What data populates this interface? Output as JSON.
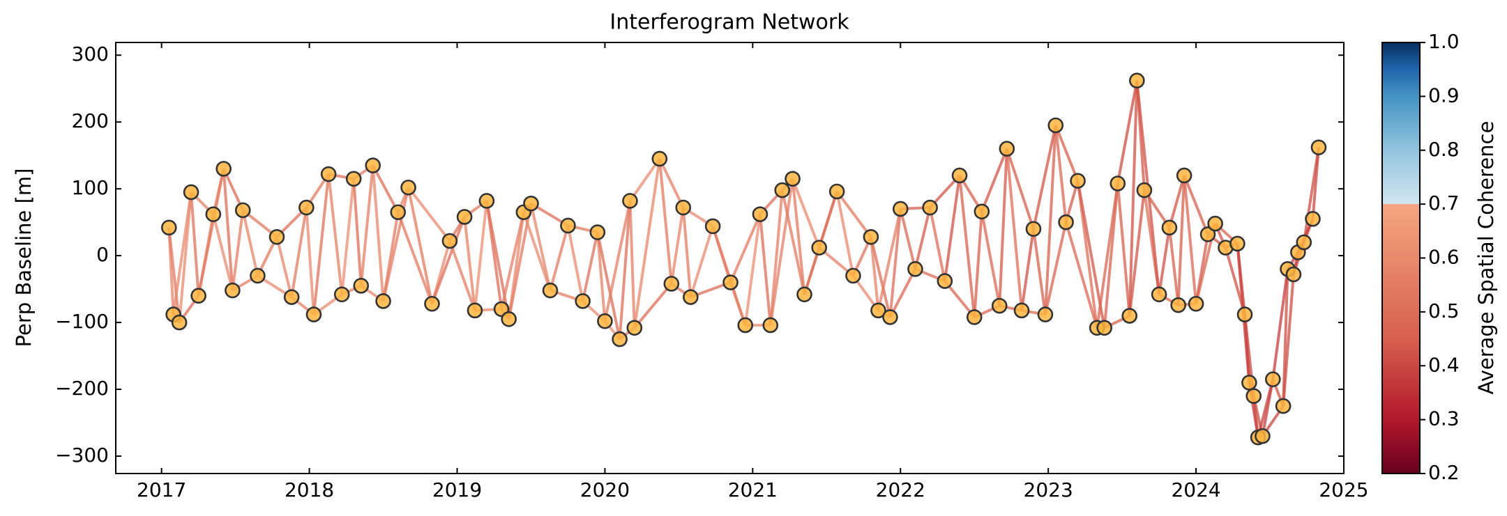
{
  "chart_data": {
    "type": "network",
    "title": "Interferogram Network",
    "ylabel": "Perp Baseline [m]",
    "x": [
      2017.05,
      2017.08,
      2017.12,
      2017.2,
      2017.25,
      2017.35,
      2017.42,
      2017.48,
      2017.55,
      2017.65,
      2017.78,
      2017.88,
      2017.98,
      2018.03,
      2018.13,
      2018.22,
      2018.3,
      2018.35,
      2018.43,
      2018.5,
      2018.6,
      2018.67,
      2018.83,
      2018.95,
      2019.05,
      2019.12,
      2019.2,
      2019.3,
      2019.35,
      2019.45,
      2019.5,
      2019.63,
      2019.75,
      2019.85,
      2019.95,
      2020.0,
      2020.1,
      2020.17,
      2020.2,
      2020.37,
      2020.45,
      2020.53,
      2020.58,
      2020.73,
      2020.85,
      2020.95,
      2021.05,
      2021.12,
      2021.2,
      2021.27,
      2021.35,
      2021.45,
      2021.57,
      2021.68,
      2021.8,
      2021.85,
      2021.93,
      2022.0,
      2022.1,
      2022.2,
      2022.3,
      2022.4,
      2022.5,
      2022.55,
      2022.67,
      2022.72,
      2022.82,
      2022.9,
      2022.98,
      2023.05,
      2023.12,
      2023.2,
      2023.33,
      2023.38,
      2023.47,
      2023.55,
      2023.6,
      2023.65,
      2023.75,
      2023.82,
      2023.88,
      2023.92,
      2024.0,
      2024.08,
      2024.13,
      2024.2,
      2024.28,
      2024.33,
      2024.36,
      2024.39,
      2024.42,
      2024.45,
      2024.52,
      2024.59,
      2024.62,
      2024.66,
      2024.69,
      2024.73,
      2024.79,
      2024.83
    ],
    "values": [
      42,
      -88,
      -100,
      95,
      -60,
      62,
      130,
      -52,
      68,
      -30,
      28,
      -62,
      72,
      -88,
      122,
      -58,
      115,
      -45,
      135,
      -68,
      65,
      102,
      -72,
      22,
      58,
      -82,
      82,
      -80,
      -95,
      65,
      78,
      -52,
      45,
      -68,
      35,
      -98,
      -125,
      82,
      -108,
      145,
      -42,
      72,
      -62,
      44,
      -40,
      -104,
      62,
      -104,
      98,
      115,
      -58,
      12,
      96,
      -30,
      28,
      -82,
      -92,
      70,
      -20,
      72,
      -38,
      120,
      -92,
      66,
      -75,
      160,
      -82,
      40,
      -88,
      195,
      50,
      112,
      -108,
      -108,
      108,
      -90,
      262,
      98,
      -58,
      42,
      -74,
      120,
      -72,
      32,
      48,
      12,
      18,
      -88,
      -190,
      -210,
      -272,
      -270,
      -185,
      -225,
      -20,
      -28,
      5,
      20,
      55,
      162
    ],
    "edges": [
      [
        0,
        1,
        0.58
      ],
      [
        1,
        2,
        0.55
      ],
      [
        2,
        3,
        0.6
      ],
      [
        3,
        4,
        0.52
      ],
      [
        4,
        5,
        0.57
      ],
      [
        5,
        6,
        0.62
      ],
      [
        6,
        7,
        0.5
      ],
      [
        7,
        8,
        0.56
      ],
      [
        8,
        9,
        0.59
      ],
      [
        9,
        10,
        0.54
      ],
      [
        10,
        11,
        0.58
      ],
      [
        11,
        12,
        0.55
      ],
      [
        12,
        13,
        0.6
      ],
      [
        13,
        14,
        0.52
      ],
      [
        14,
        15,
        0.57
      ],
      [
        15,
        16,
        0.62
      ],
      [
        16,
        17,
        0.5
      ],
      [
        17,
        18,
        0.56
      ],
      [
        18,
        19,
        0.59
      ],
      [
        19,
        20,
        0.54
      ],
      [
        20,
        21,
        0.58
      ],
      [
        21,
        22,
        0.55
      ],
      [
        22,
        23,
        0.6
      ],
      [
        23,
        24,
        0.52
      ],
      [
        24,
        25,
        0.57
      ],
      [
        25,
        26,
        0.62
      ],
      [
        26,
        27,
        0.5
      ],
      [
        27,
        28,
        0.56
      ],
      [
        28,
        29,
        0.59
      ],
      [
        29,
        30,
        0.54
      ],
      [
        30,
        31,
        0.58
      ],
      [
        31,
        32,
        0.55
      ],
      [
        32,
        33,
        0.6
      ],
      [
        33,
        34,
        0.52
      ],
      [
        34,
        35,
        0.57
      ],
      [
        35,
        36,
        0.62
      ],
      [
        36,
        37,
        0.5
      ],
      [
        37,
        38,
        0.56
      ],
      [
        38,
        39,
        0.59
      ],
      [
        39,
        40,
        0.54
      ],
      [
        40,
        41,
        0.58
      ],
      [
        41,
        42,
        0.55
      ],
      [
        42,
        43,
        0.6
      ],
      [
        43,
        44,
        0.52
      ],
      [
        44,
        45,
        0.57
      ],
      [
        45,
        46,
        0.62
      ],
      [
        46,
        47,
        0.5
      ],
      [
        47,
        48,
        0.56
      ],
      [
        48,
        49,
        0.59
      ],
      [
        49,
        50,
        0.54
      ],
      [
        50,
        51,
        0.58
      ],
      [
        51,
        52,
        0.55
      ],
      [
        52,
        53,
        0.6
      ],
      [
        53,
        54,
        0.52
      ],
      [
        54,
        55,
        0.57
      ],
      [
        55,
        56,
        0.62
      ],
      [
        56,
        57,
        0.5
      ],
      [
        57,
        58,
        0.48
      ],
      [
        58,
        59,
        0.44
      ],
      [
        59,
        60,
        0.5
      ],
      [
        60,
        61,
        0.42
      ],
      [
        61,
        62,
        0.46
      ],
      [
        62,
        63,
        0.45
      ],
      [
        63,
        64,
        0.48
      ],
      [
        64,
        65,
        0.44
      ],
      [
        65,
        66,
        0.5
      ],
      [
        66,
        67,
        0.42
      ],
      [
        67,
        68,
        0.46
      ],
      [
        68,
        69,
        0.45
      ],
      [
        69,
        70,
        0.48
      ],
      [
        70,
        71,
        0.44
      ],
      [
        71,
        72,
        0.5
      ],
      [
        72,
        73,
        0.42
      ],
      [
        73,
        74,
        0.46
      ],
      [
        74,
        75,
        0.45
      ],
      [
        75,
        76,
        0.42
      ],
      [
        76,
        77,
        0.44
      ],
      [
        77,
        78,
        0.5
      ],
      [
        78,
        79,
        0.42
      ],
      [
        79,
        80,
        0.46
      ],
      [
        80,
        81,
        0.45
      ],
      [
        81,
        82,
        0.48
      ],
      [
        82,
        83,
        0.44
      ],
      [
        83,
        84,
        0.5
      ],
      [
        84,
        85,
        0.42
      ],
      [
        85,
        86,
        0.46
      ],
      [
        86,
        87,
        0.4
      ],
      [
        87,
        88,
        0.38
      ],
      [
        88,
        89,
        0.42
      ],
      [
        89,
        90,
        0.41
      ],
      [
        90,
        91,
        0.4
      ],
      [
        91,
        92,
        0.38
      ],
      [
        92,
        93,
        0.42
      ],
      [
        93,
        94,
        0.41
      ],
      [
        94,
        95,
        0.4
      ],
      [
        95,
        96,
        0.38
      ],
      [
        96,
        97,
        0.42
      ],
      [
        97,
        98,
        0.41
      ],
      [
        98,
        99,
        0.4
      ],
      [
        0,
        2,
        0.54
      ],
      [
        1,
        3,
        0.6
      ],
      [
        2,
        4,
        0.5
      ],
      [
        3,
        5,
        0.56
      ],
      [
        4,
        6,
        0.54
      ],
      [
        5,
        7,
        0.6
      ],
      [
        6,
        8,
        0.5
      ],
      [
        7,
        9,
        0.56
      ],
      [
        8,
        10,
        0.54
      ],
      [
        9,
        11,
        0.6
      ],
      [
        10,
        12,
        0.5
      ],
      [
        11,
        13,
        0.56
      ],
      [
        12,
        14,
        0.54
      ],
      [
        13,
        15,
        0.6
      ],
      [
        14,
        16,
        0.5
      ],
      [
        15,
        17,
        0.56
      ],
      [
        16,
        18,
        0.54
      ],
      [
        17,
        19,
        0.6
      ],
      [
        18,
        20,
        0.5
      ],
      [
        19,
        21,
        0.56
      ],
      [
        20,
        22,
        0.54
      ],
      [
        21,
        23,
        0.6
      ],
      [
        22,
        24,
        0.5
      ],
      [
        23,
        25,
        0.56
      ],
      [
        24,
        26,
        0.54
      ],
      [
        25,
        27,
        0.6
      ],
      [
        26,
        28,
        0.5
      ],
      [
        27,
        29,
        0.56
      ],
      [
        28,
        30,
        0.54
      ],
      [
        29,
        31,
        0.6
      ],
      [
        30,
        32,
        0.5
      ],
      [
        31,
        33,
        0.56
      ],
      [
        32,
        34,
        0.54
      ],
      [
        33,
        35,
        0.6
      ],
      [
        34,
        36,
        0.5
      ],
      [
        35,
        37,
        0.56
      ],
      [
        36,
        38,
        0.54
      ],
      [
        37,
        39,
        0.6
      ],
      [
        38,
        40,
        0.5
      ],
      [
        39,
        41,
        0.56
      ],
      [
        40,
        42,
        0.54
      ],
      [
        41,
        43,
        0.6
      ],
      [
        42,
        44,
        0.5
      ],
      [
        43,
        45,
        0.56
      ],
      [
        44,
        46,
        0.54
      ],
      [
        45,
        47,
        0.6
      ],
      [
        46,
        48,
        0.5
      ],
      [
        47,
        49,
        0.56
      ],
      [
        48,
        50,
        0.54
      ],
      [
        49,
        51,
        0.6
      ],
      [
        50,
        52,
        0.5
      ],
      [
        51,
        53,
        0.56
      ],
      [
        52,
        54,
        0.54
      ],
      [
        53,
        55,
        0.6
      ],
      [
        54,
        56,
        0.5
      ],
      [
        55,
        57,
        0.56
      ],
      [
        56,
        58,
        0.48
      ],
      [
        57,
        59,
        0.45
      ],
      [
        58,
        60,
        0.5
      ],
      [
        59,
        61,
        0.43
      ],
      [
        60,
        62,
        0.47
      ],
      [
        61,
        63,
        0.45
      ],
      [
        62,
        64,
        0.48
      ],
      [
        63,
        65,
        0.43
      ],
      [
        64,
        66,
        0.47
      ],
      [
        65,
        67,
        0.45
      ],
      [
        66,
        68,
        0.48
      ],
      [
        67,
        69,
        0.43
      ],
      [
        68,
        70,
        0.47
      ],
      [
        69,
        71,
        0.45
      ],
      [
        70,
        72,
        0.48
      ],
      [
        71,
        73,
        0.43
      ],
      [
        72,
        74,
        0.47
      ],
      [
        73,
        75,
        0.45
      ],
      [
        74,
        76,
        0.41
      ],
      [
        75,
        77,
        0.43
      ],
      [
        76,
        78,
        0.42
      ],
      [
        77,
        79,
        0.45
      ],
      [
        78,
        80,
        0.48
      ],
      [
        79,
        81,
        0.43
      ],
      [
        80,
        82,
        0.47
      ],
      [
        81,
        83,
        0.45
      ],
      [
        82,
        84,
        0.48
      ],
      [
        83,
        85,
        0.43
      ],
      [
        84,
        86,
        0.47
      ],
      [
        85,
        87,
        0.42
      ],
      [
        86,
        88,
        0.39
      ],
      [
        87,
        89,
        0.4
      ],
      [
        88,
        90,
        0.38
      ],
      [
        89,
        91,
        0.41
      ],
      [
        90,
        92,
        0.39
      ],
      [
        91,
        93,
        0.4
      ],
      [
        92,
        94,
        0.38
      ],
      [
        93,
        95,
        0.41
      ],
      [
        94,
        96,
        0.39
      ],
      [
        95,
        97,
        0.4
      ],
      [
        96,
        98,
        0.38
      ],
      [
        97,
        99,
        0.41
      ]
    ],
    "xlim": [
      2016.69,
      2025.0
    ],
    "xticks": [
      2017,
      2018,
      2019,
      2020,
      2021,
      2022,
      2023,
      2024,
      2025
    ],
    "ylim": [
      -326,
      319
    ],
    "yticks": [
      {
        "value": -300,
        "label": "−300"
      },
      {
        "value": -200,
        "label": "−200"
      },
      {
        "value": -100,
        "label": "−100"
      },
      0,
      100,
      200,
      300
    ],
    "node_color": "#fbb540",
    "colorbar": {
      "label": "Average Spatial Coherence",
      "lim": [
        0.2,
        1.0
      ],
      "ticks": [
        0.2,
        0.3,
        0.4,
        0.5,
        0.6,
        0.7,
        0.8,
        0.9,
        {
          "value": 1,
          "label": "1.0"
        }
      ]
    }
  }
}
